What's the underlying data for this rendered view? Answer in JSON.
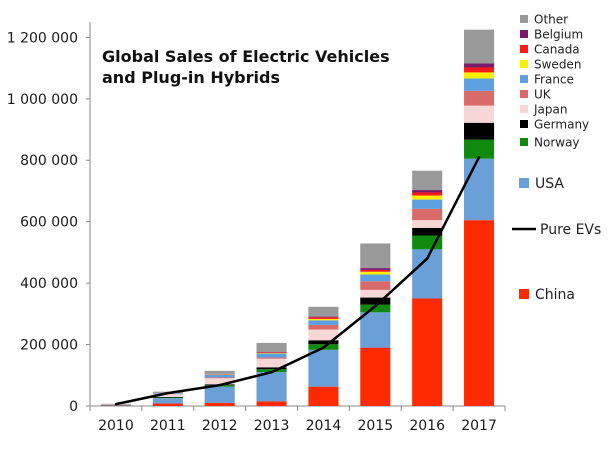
{
  "chart_data": {
    "type": "bar",
    "stacked": true,
    "title_lines": [
      "Global Sales of Electric Vehicles",
      "and Plug-in Hybrids"
    ],
    "categories": [
      "2010",
      "2011",
      "2012",
      "2013",
      "2014",
      "2015",
      "2016",
      "2017"
    ],
    "ylim": [
      0,
      1250000
    ],
    "yticks": [
      0,
      200000,
      400000,
      600000,
      800000,
      1000000,
      1200000
    ],
    "ytick_labels": [
      "0",
      "200 000",
      "400 000",
      "600 000",
      "800 000",
      "1 000 000",
      "1 200 000"
    ],
    "grid": false,
    "legend_position": "right",
    "series": [
      {
        "name": "China",
        "color": "#ff2a00",
        "values": [
          1000,
          8000,
          10000,
          15000,
          63000,
          190000,
          350000,
          605000
        ]
      },
      {
        "name": "USA",
        "color": "#6a9fd8",
        "values": [
          1500,
          17500,
          53000,
          95000,
          120000,
          115000,
          160000,
          200000
        ]
      },
      {
        "name": "Norway",
        "color": "#0f8a0f",
        "values": [
          300,
          2000,
          4500,
          10000,
          18000,
          25000,
          45000,
          62000
        ]
      },
      {
        "name": "Germany",
        "color": "#000000",
        "values": [
          500,
          2000,
          3000,
          6000,
          13000,
          23000,
          25000,
          55000
        ]
      },
      {
        "name": "Japan",
        "color": "#f7d6d6",
        "values": [
          1000,
          9000,
          20000,
          28000,
          35000,
          25000,
          25000,
          56000
        ]
      },
      {
        "name": "UK",
        "color": "#d96a6a",
        "values": [
          300,
          1000,
          2500,
          4000,
          15000,
          28000,
          37000,
          48000
        ]
      },
      {
        "name": "France",
        "color": "#5da0e0",
        "values": [
          300,
          2500,
          9000,
          13000,
          15000,
          22000,
          30000,
          40000
        ]
      },
      {
        "name": "Sweden",
        "color": "#ffee00",
        "values": [
          0,
          200,
          1000,
          1500,
          4500,
          9000,
          13000,
          20000
        ]
      },
      {
        "name": "Canada",
        "color": "#ff1a1a",
        "values": [
          0,
          200,
          1000,
          2000,
          5000,
          6000,
          10000,
          16000
        ]
      },
      {
        "name": "Belgium",
        "color": "#7a1a6a",
        "values": [
          0,
          300,
          500,
          1000,
          2500,
          6000,
          8000,
          13000
        ]
      },
      {
        "name": "Other",
        "color": "#999999",
        "values": [
          2000,
          4000,
          10000,
          30000,
          32000,
          80000,
          63000,
          110000
        ]
      }
    ],
    "line_series": {
      "name": "Pure EVs",
      "color": "#000000",
      "values": [
        6000,
        42000,
        68000,
        110000,
        190000,
        325000,
        480000,
        810000
      ]
    }
  }
}
